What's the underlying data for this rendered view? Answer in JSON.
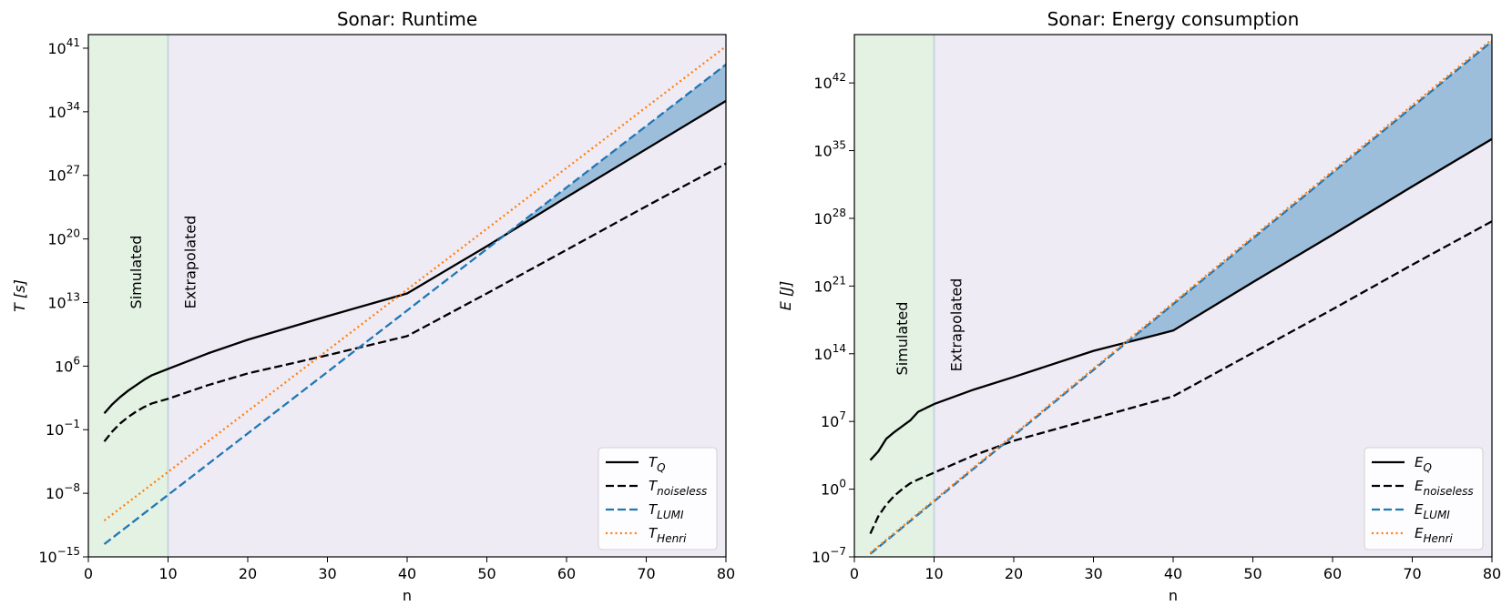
{
  "chart_data": [
    {
      "type": "line",
      "title": "Sonar: Runtime",
      "xlabel": "n",
      "ylabel": "T [s]",
      "yscale": "log",
      "xlim": [
        0,
        80
      ],
      "ylim_exp": [
        -15,
        42.5
      ],
      "xticks": [
        0,
        10,
        20,
        30,
        40,
        50,
        60,
        70,
        80
      ],
      "ytick_exps": [
        -15,
        -8,
        -1,
        6,
        13,
        20,
        27,
        34,
        41
      ],
      "regions": [
        {
          "label": "Simulated",
          "x_range": [
            0,
            10
          ],
          "color": "#e3f2e3"
        },
        {
          "label": "Extrapolated",
          "x_range": [
            10,
            80
          ],
          "color": "#efebf5"
        }
      ],
      "fill_between": {
        "series": [
          "T_LUMI",
          "T_Q"
        ],
        "color": "#9dbedb"
      },
      "legend_position": "lower-right",
      "series": [
        {
          "name": "T_Q",
          "label_main": "T",
          "label_sub": "Q",
          "style": "solid",
          "color": "#000000",
          "x": [
            2,
            3,
            4,
            5,
            6,
            7,
            8,
            10,
            15,
            20,
            30,
            40,
            50,
            60,
            70,
            80
          ],
          "log10_y": [
            0.8,
            1.8,
            2.6,
            3.3,
            3.9,
            4.5,
            5.0,
            5.7,
            7.4,
            8.9,
            11.5,
            14.0,
            19.2,
            24.6,
            29.9,
            35.2
          ]
        },
        {
          "name": "T_noiseless",
          "label_main": "T",
          "label_sub": "noiseless",
          "style": "dashed",
          "color": "#000000",
          "x": [
            2,
            3,
            4,
            5,
            6,
            7,
            8,
            10,
            15,
            20,
            30,
            40,
            50,
            60,
            70,
            80
          ],
          "log10_y": [
            -2.3,
            -1.2,
            -0.3,
            0.4,
            1.0,
            1.5,
            1.9,
            2.4,
            3.9,
            5.2,
            7.2,
            9.3,
            14.0,
            18.8,
            23.6,
            28.3
          ]
        },
        {
          "name": "T_LUMI",
          "label_main": "T",
          "label_sub": "LUMI",
          "style": "dashed",
          "color": "#1f77b4",
          "x": [
            2,
            80
          ],
          "log10_y": [
            -13.6,
            39.2
          ]
        },
        {
          "name": "T_Henri",
          "label_main": "T",
          "label_sub": "Henri",
          "style": "dotted",
          "color": "#ff7f0e",
          "x": [
            2,
            80
          ],
          "log10_y": [
            -11.0,
            41.2
          ]
        }
      ]
    },
    {
      "type": "line",
      "title": "Sonar: Energy consumption",
      "xlabel": "n",
      "ylabel": "E [J]",
      "yscale": "log",
      "xlim": [
        0,
        80
      ],
      "ylim_exp": [
        -7,
        47
      ],
      "xticks": [
        0,
        10,
        20,
        30,
        40,
        50,
        60,
        70,
        80
      ],
      "ytick_exps": [
        -7,
        0,
        7,
        14,
        21,
        28,
        35,
        42
      ],
      "regions": [
        {
          "label": "Simulated",
          "x_range": [
            0,
            10
          ],
          "color": "#e3f2e3"
        },
        {
          "label": "Extrapolated",
          "x_range": [
            10,
            80
          ],
          "color": "#efebf5"
        }
      ],
      "fill_between": {
        "series": [
          "E_LUMI",
          "E_Q"
        ],
        "color": "#9dbedb"
      },
      "legend_position": "lower-right",
      "series": [
        {
          "name": "E_Q",
          "label_main": "E",
          "label_sub": "Q",
          "style": "solid",
          "color": "#000000",
          "x": [
            2,
            3,
            4,
            5,
            6,
            7,
            8,
            10,
            15,
            20,
            30,
            40,
            50,
            60,
            70,
            80
          ],
          "log10_y": [
            3.0,
            3.9,
            5.2,
            5.9,
            6.5,
            7.1,
            8.0,
            8.8,
            10.3,
            11.6,
            14.3,
            16.4,
            21.4,
            26.3,
            31.3,
            36.2
          ],
          "_": null
        },
        {
          "name": "E_noiseless",
          "label_main": "E",
          "label_sub": "noiseless",
          "style": "dashed",
          "color": "#000000",
          "x": [
            2,
            3,
            4,
            5,
            6,
            7,
            8,
            10,
            15,
            20,
            30,
            40,
            50,
            60,
            70,
            80
          ],
          "log10_y": [
            -4.6,
            -2.8,
            -1.6,
            -0.7,
            0.0,
            0.6,
            1.0,
            1.7,
            3.5,
            5.0,
            7.3,
            9.6,
            14.1,
            18.6,
            23.2,
            27.7
          ]
        },
        {
          "name": "E_LUMI",
          "label_main": "E",
          "label_sub": "LUMI",
          "style": "dashed",
          "color": "#1f77b4",
          "x": [
            2,
            80
          ],
          "log10_y": [
            -6.7,
            46.3
          ]
        },
        {
          "name": "E_Henri",
          "label_main": "E",
          "label_sub": "Henri",
          "style": "dotted",
          "color": "#ff7f0e",
          "x": [
            2,
            80
          ],
          "log10_y": [
            -6.6,
            46.5
          ]
        }
      ]
    }
  ]
}
